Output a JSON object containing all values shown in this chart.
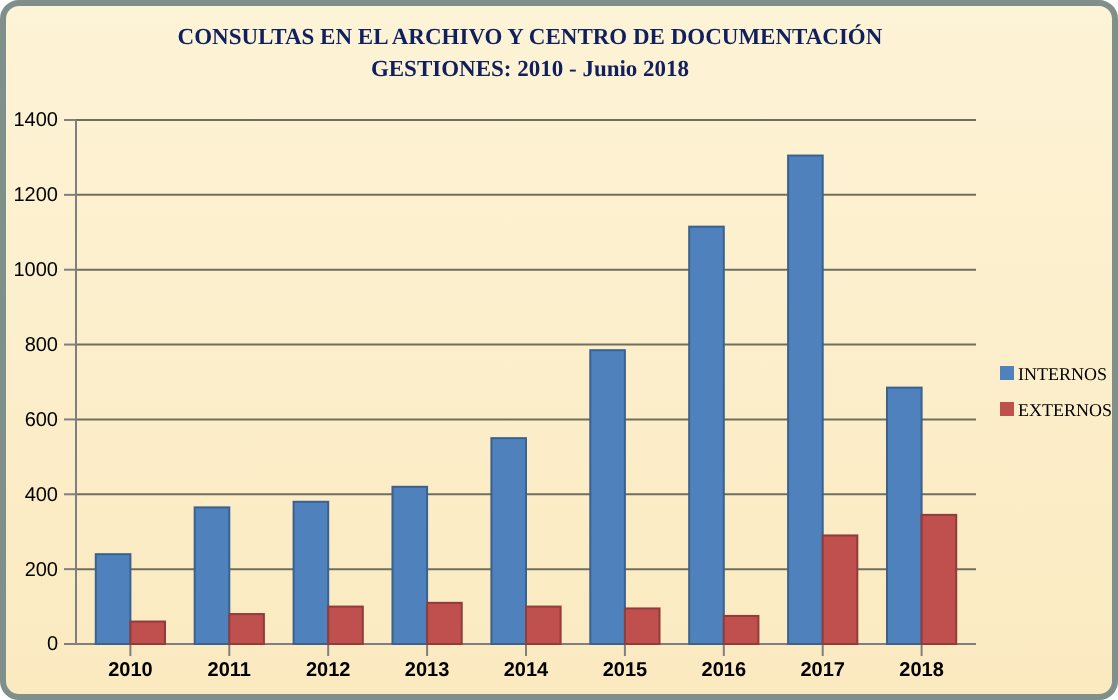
{
  "chart_data": {
    "type": "bar",
    "title": "CONSULTAS EN EL ARCHIVO Y CENTRO DE DOCUMENTACIÓN",
    "subtitle": "GESTIONES:  2010 - Junio 2018",
    "categories": [
      "2010",
      "2011",
      "2012",
      "2013",
      "2014",
      "2015",
      "2016",
      "2017",
      "2018"
    ],
    "series": [
      {
        "name": "INTERNOS",
        "color": "#4f81bd",
        "values": [
          240,
          365,
          380,
          420,
          550,
          785,
          1115,
          1305,
          685
        ]
      },
      {
        "name": "EXTERNOS",
        "color": "#c0504d",
        "values": [
          60,
          80,
          100,
          110,
          100,
          95,
          75,
          290,
          345
        ]
      }
    ],
    "ylim": [
      0,
      1400
    ],
    "yticks": [
      0,
      200,
      400,
      600,
      800,
      1000,
      1200,
      1400
    ],
    "grid": "y",
    "legend": "right"
  }
}
